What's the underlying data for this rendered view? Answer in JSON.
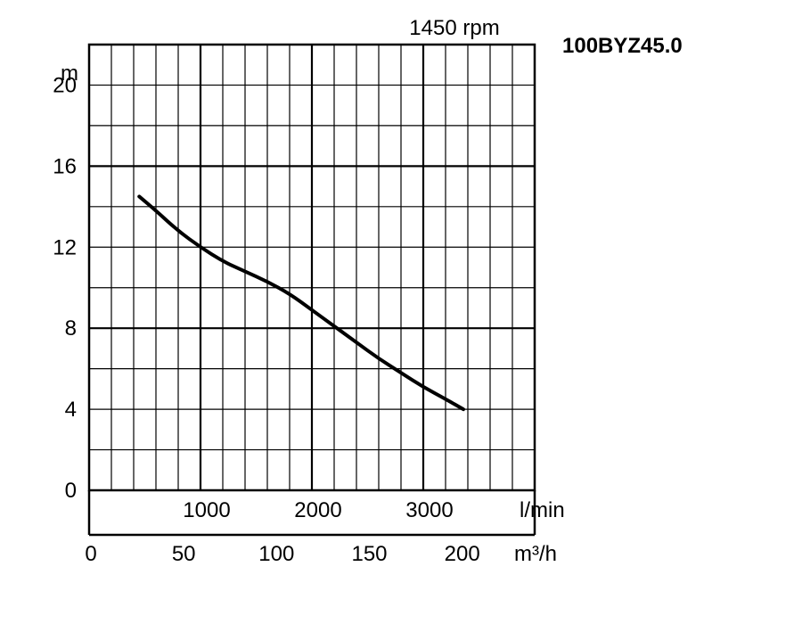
{
  "chart_data": {
    "type": "line",
    "title": "100BYZ45.0",
    "speed_label": "1450 rpm",
    "ylabel": "m",
    "xlabel_primary": "l/min",
    "xlabel_secondary": "m³/h",
    "ylim": [
      0,
      22
    ],
    "xlim": [
      0,
      4000
    ],
    "xlim_secondary": [
      0,
      240
    ],
    "y_ticks": [
      {
        "value": 0,
        "label": "0"
      },
      {
        "value": 4,
        "label": "4"
      },
      {
        "value": 8,
        "label": "8"
      },
      {
        "value": 12,
        "label": "12"
      },
      {
        "value": 16,
        "label": "16"
      },
      {
        "value": 20,
        "label": "20"
      }
    ],
    "x_ticks_primary": [
      {
        "value": 1000,
        "label": "1000"
      },
      {
        "value": 2000,
        "label": "2000"
      },
      {
        "value": 3000,
        "label": "3000"
      }
    ],
    "x_ticks_secondary": [
      {
        "value": 0,
        "label": "0"
      },
      {
        "value": 50,
        "label": "50"
      },
      {
        "value": 100,
        "label": "100"
      },
      {
        "value": 150,
        "label": "150"
      },
      {
        "value": 200,
        "label": "200"
      }
    ],
    "grid": true,
    "series": [
      {
        "x": [
          450,
          600,
          800,
          1000,
          1200,
          1400,
          1600,
          1800,
          2000,
          2200,
          2400,
          2600,
          2800,
          3000,
          3200,
          3360
        ],
        "y": [
          14.5,
          13.8,
          12.8,
          12.0,
          11.3,
          10.8,
          10.3,
          9.7,
          8.9,
          8.1,
          7.3,
          6.5,
          5.8,
          5.1,
          4.5,
          4.0
        ]
      }
    ]
  }
}
